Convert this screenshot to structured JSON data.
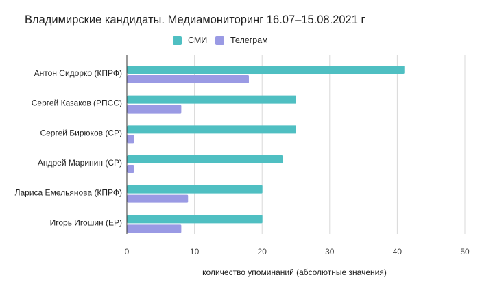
{
  "chart_data": {
    "type": "bar",
    "orientation": "horizontal",
    "title": "Владимирские кандидаты. Медиамониторинг 16.07–15.08.2021 г",
    "xlabel": "количество упоминаний (абсолютные значения)",
    "ylabel": "",
    "categories": [
      "Антон Сидорко (КПРФ)",
      "Сергей Казаков (РПСС)",
      "Сергей Бирюков (СР)",
      "Андрей Маринин (СР)",
      "Лариса Емельянова (КПРФ)",
      "Игорь Игошин (ЕР)"
    ],
    "series": [
      {
        "name": "СМИ",
        "color": "#4fbfc2",
        "values": [
          41,
          25,
          25,
          23,
          20,
          20
        ]
      },
      {
        "name": "Телеграм",
        "color": "#9a9ae4",
        "values": [
          18,
          8,
          1,
          1,
          9,
          8
        ]
      }
    ],
    "xlim": [
      0,
      50
    ],
    "xticks": [
      "0",
      "10",
      "20",
      "30",
      "40",
      "50"
    ],
    "grid": true,
    "legend_position": "top"
  }
}
